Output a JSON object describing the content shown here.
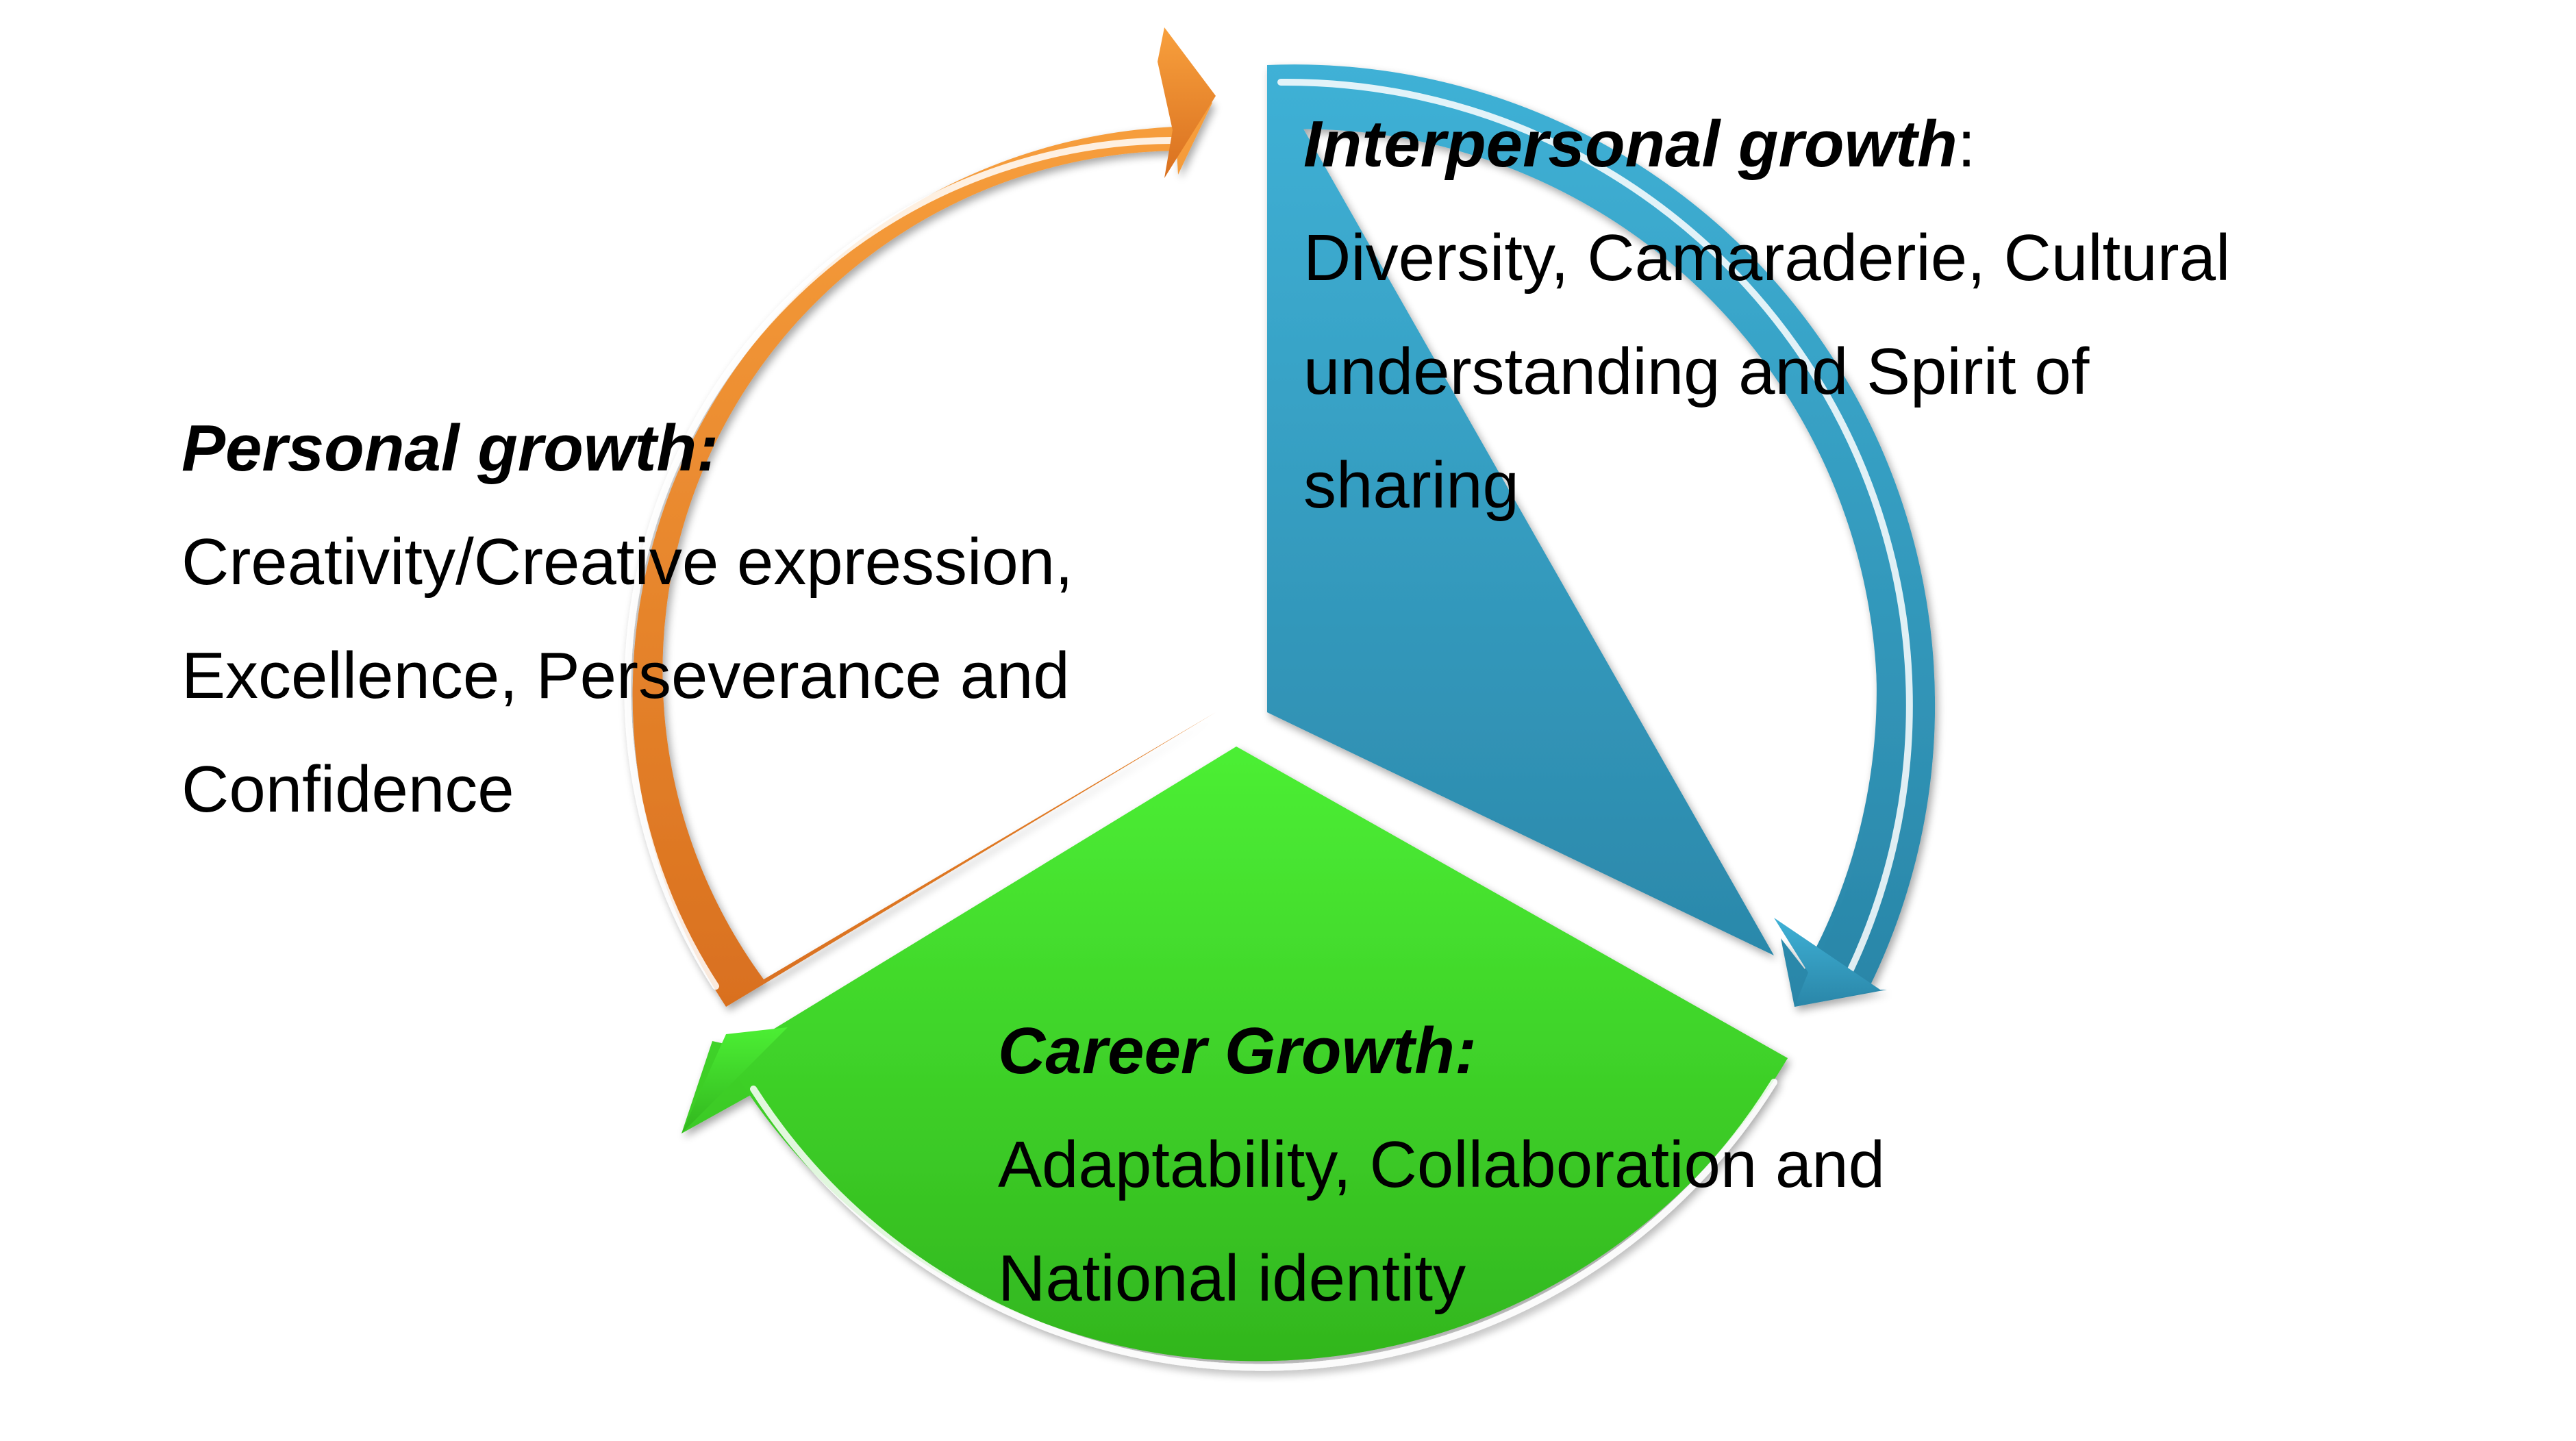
{
  "colors": {
    "orange_light": "#f8a03d",
    "orange_dark": "#d9701f",
    "blue_light": "#3fb1d6",
    "blue_dark": "#2a86a8",
    "green_light": "#4cef34",
    "green_dark": "#32b61e",
    "highlight": "#ffffff"
  },
  "segments": [
    {
      "id": "personal",
      "title": "Personal growth:",
      "suffix": "",
      "lines": [
        "Creativity/Creative expression,",
        "Excellence, Perseverance and",
        "Confidence"
      ]
    },
    {
      "id": "interpersonal",
      "title": "Interpersonal growth",
      "suffix": ":",
      "lines": [
        "Diversity, Camaraderie, Cultural",
        "understanding and Spirit of",
        "sharing"
      ]
    },
    {
      "id": "career",
      "title": "Career Growth:",
      "suffix": "",
      "lines": [
        "Adaptability, Collaboration and",
        "National identity"
      ]
    }
  ]
}
